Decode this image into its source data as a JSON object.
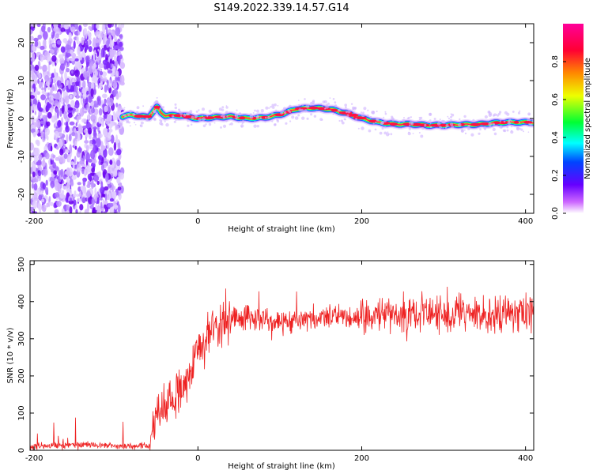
{
  "title": "S149.2022.339.14.57.G14",
  "chart_data": [
    {
      "type": "heatmap",
      "xlabel": "Height of straight line (km)",
      "ylabel": "Frequency (Hz)",
      "xlim": [
        -205,
        410
      ],
      "ylim": [
        -25,
        25
      ],
      "x_ticks": [
        -200,
        0,
        200,
        400
      ],
      "y_ticks": [
        -20,
        -10,
        0,
        10,
        20
      ],
      "colorbar": {
        "label": "Normalized spectral amplitude",
        "range": [
          0,
          1
        ],
        "ticks": [
          0.0,
          0.2,
          0.4,
          0.6,
          0.8
        ],
        "colors": [
          "#ffffff",
          "#cc66ff",
          "#6600ff",
          "#0044ff",
          "#00ffff",
          "#00ff33",
          "#eeff00",
          "#ff8800",
          "#ff0033",
          "#ff0099"
        ]
      },
      "noise_region_x": [
        -205,
        -92
      ],
      "ridge": {
        "x": [
          -92,
          -80,
          -70,
          -60,
          -50,
          -45,
          -40,
          -30,
          -20,
          0,
          20,
          40,
          60,
          80,
          100,
          120,
          140,
          160,
          180,
          200,
          220,
          240,
          260,
          280,
          300,
          320,
          340,
          360,
          380,
          410
        ],
        "y": [
          0.5,
          1.0,
          0.5,
          0.5,
          3.0,
          1.5,
          0.8,
          0.8,
          0.8,
          0.0,
          0.3,
          0.5,
          0.0,
          0.2,
          1.0,
          2.5,
          2.8,
          2.5,
          1.5,
          0.0,
          -1.0,
          -1.5,
          -1.5,
          -1.8,
          -1.8,
          -1.6,
          -1.6,
          -1.2,
          -1.0,
          -1.0
        ]
      }
    },
    {
      "type": "line",
      "xlabel": "Height of straight line (km)",
      "ylabel": "SNR (10 * v/v)",
      "xlim": [
        -205,
        410
      ],
      "ylim": [
        0,
        510
      ],
      "x_ticks": [
        -200,
        0,
        200,
        400
      ],
      "y_ticks": [
        0,
        100,
        200,
        300,
        400,
        500
      ],
      "color": "#ee2222",
      "series": [
        {
          "x": [
            -205,
            -150,
            -100,
            -60,
            -55,
            -50,
            -45,
            -40,
            -30,
            -20,
            -10,
            -5,
            0,
            10,
            20,
            25,
            30,
            40,
            60,
            100,
            150,
            200,
            250,
            300,
            350,
            400,
            410
          ],
          "values": [
            10,
            15,
            12,
            10,
            60,
            110,
            100,
            120,
            150,
            170,
            200,
            240,
            280,
            300,
            330,
            345,
            350,
            355,
            360,
            340,
            360,
            355,
            365,
            370,
            365,
            365,
            360
          ]
        }
      ]
    }
  ]
}
